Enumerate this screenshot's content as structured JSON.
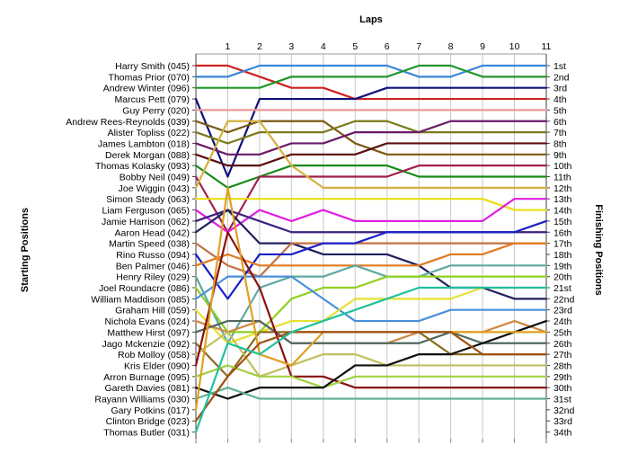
{
  "chart_data": {
    "type": "line",
    "xlabel": "Laps",
    "ylabel_left": "Starting Positions",
    "ylabel_right": "Finishing Positions",
    "laps": [
      1,
      2,
      3,
      4,
      5,
      6,
      7,
      8,
      9,
      10,
      11
    ],
    "starting_labels": [
      "Harry Smith (045)",
      "Thomas Prior (070)",
      "Andrew Winter (096)",
      "Marcus Pett (079)",
      "Guy Perry (020)",
      "Andrew Rees-Reynolds (039)",
      "Alister Topliss (022)",
      "James Lambton (018)",
      "Derek Morgan (088)",
      "Thomas Kolasky (093)",
      "Bobby Neil (049)",
      "Joe Wiggin (043)",
      "Simon Steady (063)",
      "Liam Ferguson (065)",
      "Jamie Harrison (062)",
      "Aaron Head (042)",
      "Martin Speed (038)",
      "Rino Russo (094)",
      "Ben Palmer (046)",
      "Henry Riley (029)",
      "Joel Roundacre (086)",
      "William Maddison (085)",
      "Graham Hill (059)",
      "Nichola Evans (024)",
      "Matthew Hirst (097)",
      "Jago Mckenzie (092)",
      "Rob Molloy (058)",
      "Kris Elder (090)",
      "Arron Burnage (095)",
      "Gareth Davies (081)",
      "Rayann Williams (030)",
      "Gary Potkins (017)",
      "Clinton Bridge (023)",
      "Thomas Butler (031)"
    ],
    "finishing_labels": [
      "1st",
      "2nd",
      "3rd",
      "4th",
      "5th",
      "6th",
      "7th",
      "8th",
      "9th",
      "10th",
      "11th",
      "12th",
      "13th",
      "14th",
      "15th",
      "16th",
      "17th",
      "18th",
      "19th",
      "20th",
      "21st",
      "22nd",
      "23rd",
      "24th",
      "25th",
      "26th",
      "27th",
      "28th",
      "29th",
      "30th",
      "31st",
      "32nd",
      "33rd",
      "34th"
    ],
    "series": [
      {
        "color": "#cc2222",
        "positions": [
          1,
          1,
          2,
          3,
          3,
          4,
          4,
          4,
          4,
          4,
          4,
          4
        ]
      },
      {
        "color": "#3a86d6",
        "positions": [
          2,
          2,
          1,
          1,
          1,
          1,
          1,
          2,
          2,
          1,
          1,
          1
        ]
      },
      {
        "color": "#22962a",
        "positions": [
          3,
          3,
          3,
          2,
          2,
          2,
          2,
          1,
          1,
          2,
          2,
          2
        ]
      },
      {
        "color": "#10107a",
        "positions": [
          4,
          11,
          4,
          4,
          4,
          4,
          3,
          3,
          3,
          3,
          3,
          3
        ]
      },
      {
        "color": "#e89a9a",
        "positions": [
          5,
          5,
          5,
          5,
          5,
          5,
          5,
          5,
          5,
          5,
          5,
          5
        ]
      },
      {
        "color": "#7a5a14",
        "positions": [
          6,
          7,
          6,
          6,
          6,
          8,
          9,
          9,
          9,
          9,
          9,
          9
        ]
      },
      {
        "color": "#7a7a1a",
        "positions": [
          7,
          8,
          7,
          7,
          7,
          6,
          6,
          7,
          7,
          7,
          7,
          7
        ]
      },
      {
        "color": "#6a1a6a",
        "positions": [
          8,
          9,
          9,
          8,
          8,
          7,
          7,
          7,
          6,
          6,
          6,
          6
        ]
      },
      {
        "color": "#5a1010",
        "positions": [
          9,
          10,
          10,
          9,
          9,
          9,
          8,
          8,
          8,
          8,
          8,
          8
        ]
      },
      {
        "color": "#1a8a1a",
        "positions": [
          10,
          12,
          11,
          10,
          10,
          10,
          10,
          11,
          11,
          11,
          11,
          11
        ]
      },
      {
        "color": "#a02050",
        "positions": [
          11,
          16,
          11,
          11,
          11,
          11,
          11,
          10,
          10,
          10,
          10,
          10
        ]
      },
      {
        "color": "#d4b040",
        "positions": [
          12,
          6,
          6,
          10,
          12,
          12,
          12,
          12,
          12,
          12,
          12,
          12
        ]
      },
      {
        "color": "#e8e010",
        "positions": [
          13,
          13,
          13,
          13,
          13,
          13,
          13,
          13,
          13,
          13,
          14,
          14
        ]
      },
      {
        "color": "#e020e0",
        "positions": [
          14,
          16,
          14,
          15,
          14,
          15,
          15,
          15,
          15,
          15,
          13,
          13
        ]
      },
      {
        "color": "#3b2080",
        "positions": [
          15,
          14,
          15,
          16,
          16,
          16,
          16,
          16,
          16,
          16,
          16,
          16
        ]
      },
      {
        "color": "#202060",
        "positions": [
          16,
          14,
          17,
          17,
          18,
          18,
          18,
          19,
          21,
          21,
          22,
          22
        ]
      },
      {
        "color": "#c07040",
        "positions": [
          17,
          19,
          20,
          17,
          17,
          17,
          17,
          17,
          17,
          17,
          17,
          17
        ]
      },
      {
        "color": "#1a20c8",
        "positions": [
          18,
          22,
          18,
          18,
          17,
          17,
          16,
          16,
          16,
          16,
          16,
          15
        ]
      },
      {
        "color": "#e07a20",
        "positions": [
          19,
          18,
          19,
          19,
          19,
          19,
          19,
          19,
          18,
          18,
          17,
          17
        ]
      },
      {
        "color": "#60a8a0",
        "positions": [
          20,
          26,
          21,
          20,
          20,
          19,
          20,
          20,
          19,
          19,
          19,
          19
        ]
      },
      {
        "color": "#90d020",
        "positions": [
          21,
          25,
          25,
          22,
          21,
          21,
          20,
          20,
          20,
          20,
          20,
          20
        ]
      },
      {
        "color": "#4890d8",
        "positions": [
          22,
          20,
          20,
          20,
          22,
          24,
          24,
          24,
          23,
          23,
          23,
          23
        ]
      },
      {
        "color": "#e8e030",
        "positions": [
          23,
          26,
          25,
          24,
          24,
          22,
          22,
          22,
          22,
          21,
          21,
          21
        ]
      },
      {
        "color": "#d08840",
        "positions": [
          24,
          25,
          24,
          26,
          26,
          26,
          26,
          25,
          25,
          25,
          24,
          25
        ]
      },
      {
        "color": "#506860",
        "positions": [
          25,
          24,
          24,
          26,
          26,
          26,
          26,
          26,
          25,
          26,
          26,
          26
        ]
      },
      {
        "color": "#8a6a20",
        "positions": [
          26,
          29,
          25,
          25,
          25,
          25,
          25,
          25,
          27,
          27,
          27,
          27
        ]
      },
      {
        "color": "#c0c060",
        "positions": [
          27,
          25,
          29,
          28,
          27,
          27,
          28,
          28,
          28,
          28,
          28,
          28
        ]
      },
      {
        "color": "#8a1010",
        "positions": [
          28,
          16,
          21,
          29,
          29,
          30,
          30,
          30,
          30,
          30,
          30,
          30
        ]
      },
      {
        "color": "#a0d040",
        "positions": [
          29,
          28,
          29,
          29,
          30,
          29,
          29,
          29,
          29,
          29,
          29,
          29
        ]
      },
      {
        "color": "#101010",
        "positions": [
          30,
          31,
          30,
          30,
          30,
          28,
          28,
          27,
          27,
          26,
          25,
          24
        ]
      },
      {
        "color": "#60b090",
        "positions": [
          31,
          30,
          31,
          31,
          31,
          31,
          31,
          31,
          31,
          31,
          31,
          31
        ]
      },
      {
        "color": "#e0a020",
        "positions": [
          32,
          12,
          27,
          28,
          25,
          25,
          25,
          25,
          25,
          25,
          25,
          25
        ]
      },
      {
        "color": "#a05010",
        "positions": [
          33,
          29,
          26,
          25,
          25,
          25,
          25,
          25,
          25,
          27,
          27,
          27
        ]
      },
      {
        "color": "#20c0a0",
        "positions": [
          34,
          26,
          27,
          25,
          24,
          23,
          22,
          21,
          21,
          21,
          21,
          21
        ]
      }
    ]
  }
}
